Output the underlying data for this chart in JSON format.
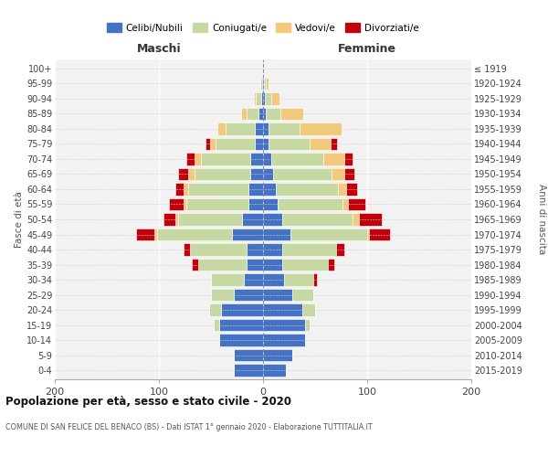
{
  "age_groups": [
    "0-4",
    "5-9",
    "10-14",
    "15-19",
    "20-24",
    "25-29",
    "30-34",
    "35-39",
    "40-44",
    "45-49",
    "50-54",
    "55-59",
    "60-64",
    "65-69",
    "70-74",
    "75-79",
    "80-84",
    "85-89",
    "90-94",
    "95-99",
    "100+"
  ],
  "birth_years": [
    "2015-2019",
    "2010-2014",
    "2005-2009",
    "2000-2004",
    "1995-1999",
    "1990-1994",
    "1985-1989",
    "1980-1984",
    "1975-1979",
    "1970-1974",
    "1965-1969",
    "1960-1964",
    "1955-1959",
    "1950-1954",
    "1945-1949",
    "1940-1944",
    "1935-1939",
    "1930-1934",
    "1925-1929",
    "1920-1924",
    "≤ 1919"
  ],
  "colors": {
    "celibi": "#4472C4",
    "coniugati": "#C5D9A0",
    "vedovi": "#F5C97A",
    "divorziati": "#C0000B"
  },
  "males": {
    "celibi": [
      28,
      28,
      42,
      42,
      40,
      28,
      18,
      16,
      16,
      30,
      20,
      14,
      14,
      12,
      12,
      8,
      8,
      4,
      2,
      1,
      0
    ],
    "coniugati": [
      0,
      0,
      0,
      5,
      12,
      22,
      32,
      46,
      54,
      72,
      62,
      60,
      58,
      54,
      48,
      38,
      28,
      12,
      5,
      2,
      0
    ],
    "vedovi": [
      0,
      0,
      0,
      0,
      0,
      0,
      0,
      0,
      0,
      2,
      2,
      2,
      4,
      6,
      6,
      5,
      8,
      5,
      2,
      0,
      0
    ],
    "divorziati": [
      0,
      0,
      0,
      0,
      0,
      0,
      0,
      6,
      6,
      18,
      12,
      14,
      8,
      10,
      8,
      4,
      0,
      0,
      0,
      0,
      0
    ]
  },
  "females": {
    "celibi": [
      22,
      28,
      40,
      40,
      38,
      28,
      20,
      18,
      18,
      26,
      18,
      14,
      12,
      10,
      8,
      5,
      5,
      3,
      2,
      1,
      0
    ],
    "coniugati": [
      0,
      0,
      0,
      5,
      12,
      20,
      28,
      44,
      52,
      74,
      68,
      62,
      60,
      56,
      50,
      40,
      30,
      14,
      6,
      2,
      0
    ],
    "vedovi": [
      0,
      0,
      0,
      0,
      0,
      0,
      0,
      0,
      0,
      2,
      6,
      6,
      8,
      12,
      20,
      20,
      40,
      22,
      8,
      2,
      0
    ],
    "divorziati": [
      0,
      0,
      0,
      0,
      0,
      0,
      4,
      6,
      8,
      20,
      22,
      16,
      10,
      10,
      8,
      6,
      0,
      0,
      0,
      0,
      0
    ]
  },
  "xlim": [
    -200,
    200
  ],
  "xticks": [
    -200,
    -100,
    0,
    100,
    200
  ],
  "xticklabels": [
    "200",
    "100",
    "0",
    "100",
    "200"
  ],
  "title": "Popolazione per età, sesso e stato civile - 2020",
  "subtitle": "COMUNE DI SAN FELICE DEL BENACO (BS) - Dati ISTAT 1° gennaio 2020 - Elaborazione TUTTITALIA.IT",
  "ylabel_left": "Fasce di età",
  "ylabel_right": "Anni di nascita",
  "maschi_label": "Maschi",
  "femmine_label": "Femmine",
  "legend_labels": [
    "Celibi/Nubili",
    "Coniugati/e",
    "Vedovi/e",
    "Divorziati/e"
  ],
  "bg_color": "#FFFFFF",
  "plot_bg_color": "#F2F2F2",
  "grid_color": "#FFFFFF"
}
